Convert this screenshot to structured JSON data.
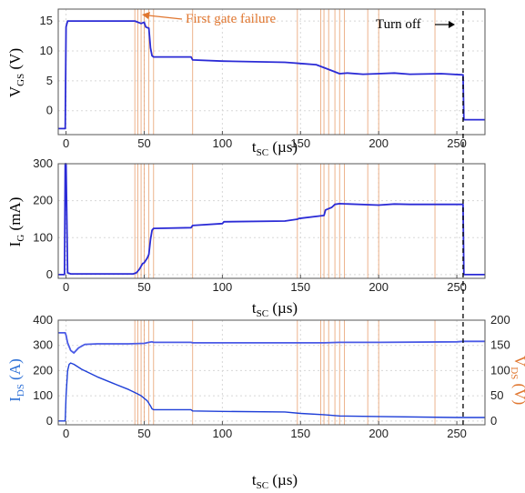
{
  "colors": {
    "vgs": "#2b2bd6",
    "ig": "#2b2bd6",
    "ids": "#1f3fd8",
    "vds": "#4a5ae6",
    "orange": "#e0762f",
    "vline": "#e8a070",
    "ids_axis": "#2b6fd6",
    "grid": "#d8d8d8"
  },
  "annotations": {
    "first_gate_failure": "First gate failure",
    "turn_off": "Turn off"
  },
  "chart_data": [
    {
      "type": "line",
      "ylabel": {
        "main": "V",
        "sub": "GS",
        "unit": " (V)"
      },
      "xlabel": {
        "main": "t",
        "sub": "SC",
        "unit": " (µs)"
      },
      "xlim": [
        -5,
        268
      ],
      "ylim": [
        -4,
        17
      ],
      "xticks": [
        0,
        50,
        100,
        150,
        200,
        250
      ],
      "yticks": [
        0,
        5,
        10,
        15
      ],
      "series": [
        {
          "key": "vgs",
          "x": [
            -5,
            -0.5,
            0,
            1,
            3,
            40,
            44,
            48,
            50,
            51,
            53,
            54,
            55,
            56,
            80,
            81,
            100,
            140,
            145,
            150,
            160,
            165,
            172,
            175,
            180,
            190,
            200,
            210,
            220,
            240,
            254,
            254.5,
            255,
            268
          ],
          "values": [
            -3,
            -3,
            14,
            15,
            15,
            15,
            15,
            14.6,
            14.8,
            14,
            13.8,
            10.5,
            9.2,
            9,
            9,
            8.5,
            8.3,
            8.1,
            8,
            7.9,
            7.7,
            7.2,
            6.5,
            6.2,
            6.3,
            6.1,
            6.2,
            6.3,
            6.1,
            6.2,
            6,
            -1.5,
            -1.5,
            -1.5
          ]
        }
      ]
    },
    {
      "type": "line",
      "ylabel": {
        "main": "I",
        "sub": "G",
        "unit": " (mA)"
      },
      "xlabel": {
        "main": "t",
        "sub": "SC",
        "unit": " (µs)"
      },
      "xlim": [
        -5,
        268
      ],
      "ylim": [
        -10,
        300
      ],
      "xticks": [
        0,
        50,
        100,
        150,
        200,
        250
      ],
      "yticks": [
        0,
        100,
        200,
        300
      ],
      "series": [
        {
          "key": "ig",
          "x": [
            -5,
            -1,
            -0.5,
            0,
            1,
            3,
            43,
            45,
            47,
            49,
            50,
            52,
            53,
            54,
            55,
            56,
            80,
            81,
            100,
            101,
            140,
            148,
            149,
            165,
            166,
            170,
            172,
            175,
            200,
            210,
            220,
            254,
            254.5,
            268
          ],
          "values": [
            0,
            0,
            300,
            300,
            5,
            2,
            2,
            5,
            15,
            30,
            32,
            45,
            55,
            95,
            120,
            125,
            127,
            133,
            138,
            143,
            145,
            150,
            152,
            160,
            175,
            182,
            190,
            192,
            188,
            191,
            190,
            190,
            0,
            0
          ]
        }
      ]
    },
    {
      "type": "line",
      "ylabel": {
        "main": "I",
        "sub": "DS",
        "unit": " (A)"
      },
      "y2label": {
        "main": "V",
        "sub": "DS",
        "unit": " (V)"
      },
      "xlabel": {
        "main": "t",
        "sub": "SC",
        "unit": " (µs)"
      },
      "xlim": [
        -5,
        268
      ],
      "ylim": [
        -15,
        400
      ],
      "y2lim": [
        -7.5,
        200
      ],
      "xticks": [
        0,
        50,
        100,
        150,
        200,
        250
      ],
      "yticks": [
        0,
        100,
        200,
        300,
        400
      ],
      "y2ticks": [
        0,
        50,
        100,
        150,
        200
      ],
      "series": [
        {
          "key": "vds",
          "axis": "y2",
          "x": [
            -5,
            -0.5,
            0,
            1,
            3,
            5,
            8,
            12,
            20,
            30,
            40,
            50,
            53,
            55,
            56,
            80,
            81,
            100,
            150,
            165,
            175,
            200,
            250,
            254,
            268
          ],
          "values": [
            175,
            175,
            170,
            155,
            140,
            135,
            145,
            152,
            153,
            153,
            153,
            154,
            156,
            157,
            156,
            156,
            155,
            155,
            155,
            155,
            156,
            156,
            157,
            158,
            158
          ]
        },
        {
          "key": "ids",
          "axis": "y",
          "x": [
            -5,
            -0.5,
            0,
            1,
            2,
            3,
            5,
            10,
            20,
            30,
            40,
            45,
            48,
            50,
            52,
            54,
            55,
            56,
            80,
            81,
            100,
            140,
            150,
            165,
            175,
            200,
            250,
            254,
            268
          ],
          "values": [
            0,
            0,
            100,
            200,
            225,
            230,
            225,
            205,
            175,
            150,
            125,
            110,
            100,
            90,
            80,
            60,
            48,
            45,
            45,
            40,
            38,
            36,
            30,
            25,
            20,
            18,
            14,
            14,
            14
          ]
        }
      ]
    }
  ]
}
